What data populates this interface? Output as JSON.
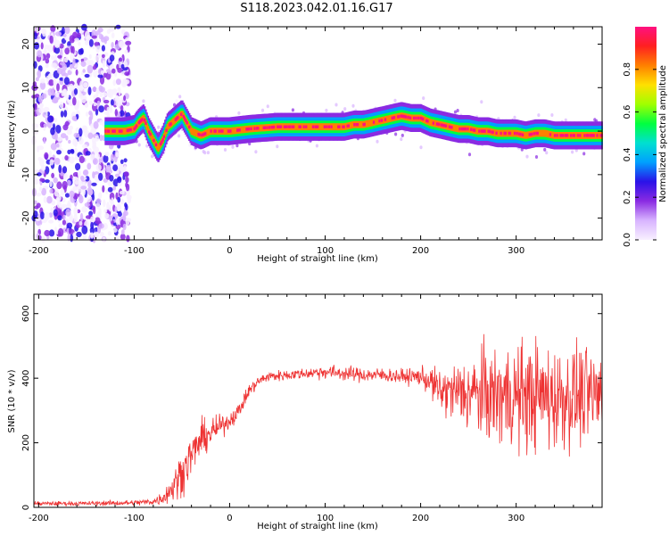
{
  "title": "S118.2023.042.01.16.G17",
  "colors": {
    "snr_line": "#ee3333",
    "axes": "#000000",
    "colormap": [
      "#f8f0ff",
      "#d8b4ff",
      "#8a2be2",
      "#2a12e8",
      "#00a0ff",
      "#00e0d0",
      "#00ff40",
      "#a0ff00",
      "#ffe000",
      "#ff8000",
      "#ff2020",
      "#ff1080"
    ]
  },
  "chart_data": [
    {
      "type": "heatmap",
      "xlabel": "Height of straight line (km)",
      "ylabel": "Frequency (Hz)",
      "xlim": [
        -205,
        390
      ],
      "ylim": [
        -25,
        24
      ],
      "x_ticks": [
        -200,
        -100,
        0,
        100,
        200,
        300
      ],
      "y_ticks": [
        -20,
        -10,
        0,
        10,
        20
      ],
      "colorbar": {
        "label": "Normalized spectral amplitude",
        "range": [
          0,
          1
        ],
        "ticks": [
          0.0,
          0.2,
          0.4,
          0.6,
          0.8
        ],
        "tick_labels": [
          "0.0",
          "0.2",
          "0.4",
          "0.6",
          "0.8"
        ]
      },
      "ridge": {
        "x": [
          -130,
          -110,
          -100,
          -95,
          -90,
          -85,
          -80,
          -75,
          -70,
          -65,
          -60,
          -55,
          -50,
          -45,
          -40,
          -35,
          -30,
          -20,
          0,
          20,
          50,
          80,
          100,
          120,
          130,
          140,
          150,
          160,
          170,
          180,
          190,
          200,
          210,
          220,
          230,
          240,
          250,
          260,
          270,
          280,
          290,
          300,
          310,
          320,
          330,
          340,
          350,
          360,
          370,
          380,
          390
        ],
        "freq": [
          0,
          0,
          0.5,
          2,
          3,
          0,
          -2,
          -4,
          -2,
          1,
          2,
          3,
          4,
          2,
          0,
          -0.5,
          -1,
          0,
          0,
          0.5,
          1,
          1,
          1,
          1,
          1.5,
          1.5,
          2,
          2.5,
          3,
          3.5,
          3,
          3,
          2,
          1.5,
          1,
          0.5,
          0.5,
          0,
          0,
          -0.5,
          -0.5,
          -0.5,
          -1,
          -0.5,
          -0.5,
          -1,
          -1,
          -1,
          -1,
          -1,
          -1
        ]
      },
      "noise_region_x": [
        -205,
        -105
      ]
    },
    {
      "type": "line",
      "xlabel": "Height of straight line (km)",
      "ylabel": "SNR (10 * v/v)",
      "xlim": [
        -205,
        390
      ],
      "ylim": [
        0,
        660
      ],
      "x_ticks": [
        -200,
        -100,
        0,
        100,
        200,
        300
      ],
      "y_ticks": [
        0,
        200,
        400,
        600
      ],
      "series": [
        {
          "x": [
            -205,
            -150,
            -100,
            -80,
            -70,
            -60,
            -50,
            -40,
            -30,
            -20,
            -10,
            0,
            10,
            20,
            30,
            40,
            60,
            80,
            100,
            120,
            140,
            160,
            180,
            200,
            210,
            220,
            240,
            260,
            280,
            300,
            320,
            340,
            360,
            380,
            390
          ],
          "values": [
            12,
            12,
            14,
            18,
            30,
            60,
            110,
            160,
            210,
            230,
            250,
            270,
            300,
            360,
            390,
            405,
            410,
            415,
            420,
            415,
            410,
            410,
            405,
            405,
            390,
            360,
            355,
            350,
            345,
            345,
            345,
            340,
            345,
            345,
            350
          ],
          "spread": [
            6,
            6,
            8,
            10,
            20,
            40,
            60,
            60,
            50,
            40,
            30,
            25,
            20,
            20,
            15,
            15,
            15,
            15,
            20,
            20,
            20,
            20,
            20,
            25,
            40,
            60,
            90,
            120,
            140,
            150,
            150,
            150,
            140,
            130,
            130
          ]
        }
      ]
    }
  ]
}
